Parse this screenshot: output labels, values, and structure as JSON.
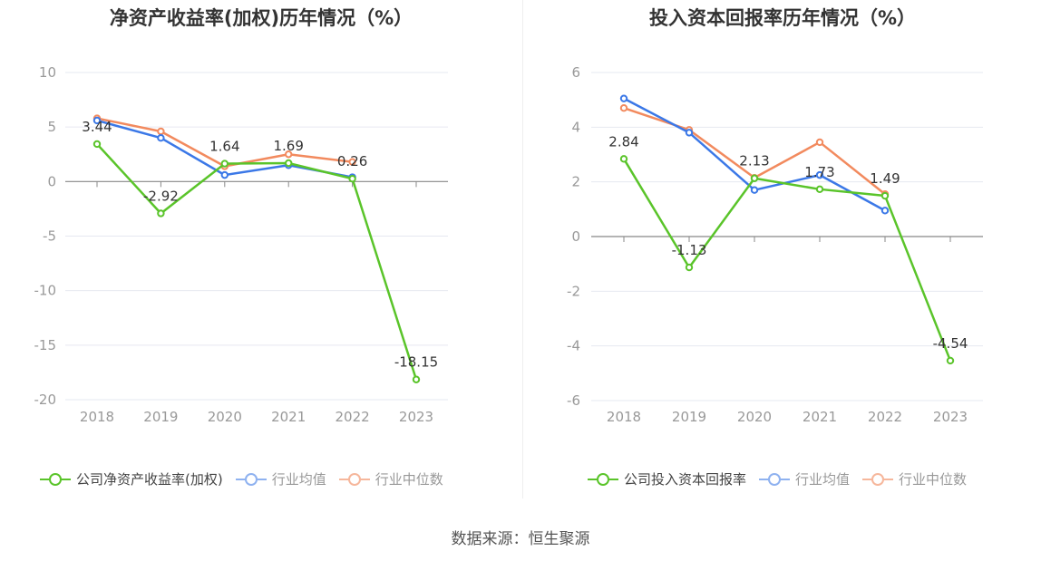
{
  "source_label": "数据来源：恒生聚源",
  "colors": {
    "company": "#5ac42a",
    "avg": "#3b78e7",
    "median": "#f28a5e",
    "grid": "#e6e8f0",
    "axis": "#888888",
    "tick_text": "#999999"
  },
  "chart_data": [
    {
      "type": "line",
      "title": "净资产收益率(加权)历年情况（%）",
      "categories": [
        "2018",
        "2019",
        "2020",
        "2021",
        "2022",
        "2023"
      ],
      "ylim": [
        -20,
        10
      ],
      "yticks": [
        10,
        5,
        0,
        -5,
        -10,
        -15,
        -20
      ],
      "grid": true,
      "legend_position": "bottom",
      "series": [
        {
          "name": "公司净资产收益率(加权)",
          "color_key": "company",
          "values": [
            3.44,
            -2.92,
            1.64,
            1.69,
            0.26,
            -18.15
          ],
          "labels": [
            "3.44",
            "-2.92",
            "1.64",
            "1.69",
            "0.26",
            "-18.15"
          ]
        },
        {
          "name": "行业均值",
          "color_key": "avg",
          "values": [
            5.6,
            4.0,
            0.6,
            1.5,
            0.4,
            null
          ]
        },
        {
          "name": "行业中位数",
          "color_key": "median",
          "values": [
            5.8,
            4.6,
            1.4,
            2.5,
            1.8,
            null
          ]
        }
      ]
    },
    {
      "type": "line",
      "title": "投入资本回报率历年情况（%）",
      "categories": [
        "2018",
        "2019",
        "2020",
        "2021",
        "2022",
        "2023"
      ],
      "ylim": [
        -6,
        6
      ],
      "yticks": [
        6,
        4,
        2,
        0,
        -2,
        -4,
        -6
      ],
      "grid": true,
      "legend_position": "bottom",
      "series": [
        {
          "name": "公司投入资本回报率",
          "color_key": "company",
          "values": [
            2.84,
            -1.13,
            2.13,
            1.73,
            1.49,
            -4.54
          ],
          "labels": [
            "2.84",
            "-1.13",
            "2.13",
            "1.73",
            "1.49",
            "-4.54"
          ]
        },
        {
          "name": "行业均值",
          "color_key": "avg",
          "values": [
            5.05,
            3.8,
            1.7,
            2.25,
            0.95,
            null
          ]
        },
        {
          "name": "行业中位数",
          "color_key": "median",
          "values": [
            4.7,
            3.9,
            2.15,
            3.45,
            1.55,
            null
          ]
        }
      ]
    }
  ]
}
